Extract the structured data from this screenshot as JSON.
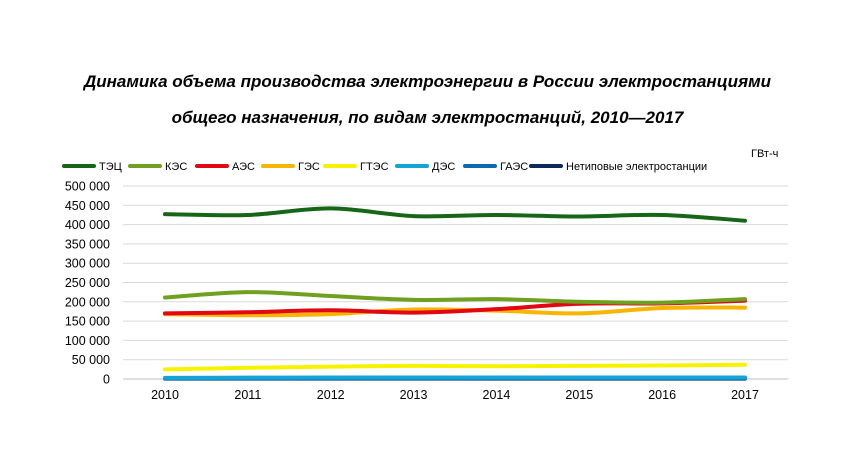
{
  "colors": {
    "ТЭЦ": "#176617",
    "КЭС": "#6fa01f",
    "АЭС": "#e30613",
    "ГЭС": "#f7b500",
    "ГТЭС": "#f7f300",
    "ДЭС": "#16a4d8",
    "ГАЭС": "#0a6bb0",
    "Нетиповые электростанции": "#0b2a5b",
    "grid": "#d9d9d9"
  },
  "chart_data": {
    "type": "line",
    "title_line1": "Динамика объема производства электроэнергии в России электростанциями",
    "title_line2": "общего назначения, по видам электростанций, 2010—2017",
    "unit": "ГВт-ч",
    "categories": [
      "2010",
      "2011",
      "2012",
      "2013",
      "2014",
      "2015",
      "2016",
      "2017"
    ],
    "ylim": [
      0,
      500000
    ],
    "yticks": [
      "0",
      "50 000",
      "100 000",
      "150 000",
      "200 000",
      "250 000",
      "300 000",
      "350 000",
      "400 000",
      "450 000",
      "500 000"
    ],
    "grid": true,
    "legend_position": "top",
    "series": [
      {
        "name": "ТЭЦ",
        "values": [
          427000,
          425000,
          442000,
          422000,
          425000,
          421000,
          425000,
          410000
        ]
      },
      {
        "name": "КЭС",
        "values": [
          211000,
          225000,
          215000,
          205000,
          207000,
          200000,
          198000,
          207000
        ]
      },
      {
        "name": "АЭС",
        "values": [
          170000,
          173000,
          178000,
          172000,
          181000,
          195000,
          196000,
          203000
        ]
      },
      {
        "name": "ГЭС",
        "values": [
          168000,
          165000,
          168000,
          180000,
          177000,
          170000,
          184000,
          185000
        ]
      },
      {
        "name": "ГТЭС",
        "values": [
          25000,
          29000,
          32000,
          34000,
          33000,
          34000,
          35000,
          37000
        ]
      },
      {
        "name": "ДЭС",
        "values": [
          3000,
          3500,
          4000,
          4000,
          4000,
          4000,
          4000,
          4000
        ]
      },
      {
        "name": "ГАЭС",
        "values": [
          1500,
          1500,
          1500,
          1500,
          2000,
          2000,
          2000,
          2000
        ]
      },
      {
        "name": "Нетиповые электростанции",
        "values": [
          1000,
          1000,
          1000,
          1000,
          1000,
          1000,
          1000,
          1000
        ]
      }
    ]
  }
}
